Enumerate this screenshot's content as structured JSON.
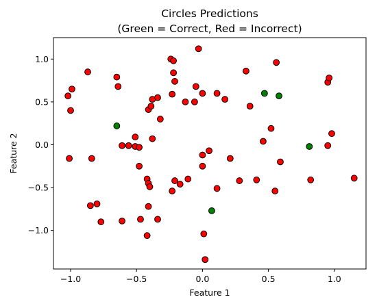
{
  "chart_data": {
    "type": "scatter",
    "title": "Circles Predictions",
    "subtitle": "(Green = Correct, Red = Incorrect)",
    "xlabel": "Feature 1",
    "ylabel": "Feature 2",
    "xlim": [
      -1.13,
      1.24
    ],
    "ylim": [
      -1.45,
      1.25
    ],
    "grid": false,
    "xticks": [
      {
        "v": -1.0,
        "label": "−1.0"
      },
      {
        "v": -0.5,
        "label": "−0.5"
      },
      {
        "v": 0.0,
        "label": "0.0"
      },
      {
        "v": 0.5,
        "label": "0.5"
      },
      {
        "v": 1.0,
        "label": "1.0"
      }
    ],
    "yticks": [
      {
        "v": -1.0,
        "label": "−1.0"
      },
      {
        "v": -0.5,
        "label": "−0.5"
      },
      {
        "v": 0.0,
        "label": "0.0"
      },
      {
        "v": 0.5,
        "label": "0.5"
      },
      {
        "v": 1.0,
        "label": "1.0"
      }
    ],
    "colors": {
      "correct": "#008000",
      "incorrect": "#ff0000",
      "edge": "#000000"
    },
    "series": [
      {
        "key": "correct",
        "color": "#008000",
        "points": [
          [
            -0.65,
            0.22
          ],
          [
            0.47,
            0.6
          ],
          [
            0.58,
            0.57
          ],
          [
            0.81,
            -0.02
          ],
          [
            0.07,
            -0.77
          ]
        ]
      },
      {
        "key": "incorrect",
        "color": "#ff0000",
        "points": [
          [
            -1.02,
            0.57
          ],
          [
            -0.99,
            0.65
          ],
          [
            -1.0,
            0.4
          ],
          [
            -1.01,
            -0.16
          ],
          [
            -0.87,
            0.85
          ],
          [
            -0.84,
            -0.16
          ],
          [
            -0.85,
            -0.71
          ],
          [
            -0.8,
            -0.69
          ],
          [
            -0.77,
            -0.9
          ],
          [
            -0.65,
            0.79
          ],
          [
            -0.64,
            0.68
          ],
          [
            -0.61,
            -0.01
          ],
          [
            -0.56,
            -0.01
          ],
          [
            -0.51,
            0.09
          ],
          [
            -0.51,
            -0.02
          ],
          [
            -0.48,
            -0.03
          ],
          [
            -0.48,
            -0.25
          ],
          [
            -0.61,
            -0.89
          ],
          [
            -0.47,
            -0.87
          ],
          [
            -0.42,
            -0.4
          ],
          [
            -0.41,
            -0.45
          ],
          [
            -0.4,
            -0.49
          ],
          [
            -0.41,
            -0.72
          ],
          [
            -0.42,
            -1.06
          ],
          [
            -0.34,
            -0.87
          ],
          [
            -0.41,
            0.41
          ],
          [
            -0.39,
            0.45
          ],
          [
            -0.38,
            0.53
          ],
          [
            -0.38,
            0.07
          ],
          [
            -0.34,
            0.55
          ],
          [
            -0.32,
            0.3
          ],
          [
            -0.24,
            1.0
          ],
          [
            -0.22,
            0.98
          ],
          [
            -0.22,
            0.84
          ],
          [
            -0.21,
            0.74
          ],
          [
            -0.23,
            0.59
          ],
          [
            -0.13,
            0.5
          ],
          [
            -0.06,
            0.5
          ],
          [
            -0.05,
            0.68
          ],
          [
            -0.03,
            1.12
          ],
          [
            0.0,
            0.6
          ],
          [
            -0.23,
            -0.54
          ],
          [
            -0.21,
            -0.42
          ],
          [
            -0.17,
            -0.46
          ],
          [
            -0.11,
            -0.4
          ],
          [
            0.0,
            -0.12
          ],
          [
            0.05,
            -0.07
          ],
          [
            0.0,
            -0.25
          ],
          [
            0.11,
            0.6
          ],
          [
            0.17,
            0.53
          ],
          [
            0.21,
            -0.16
          ],
          [
            0.11,
            -0.51
          ],
          [
            0.28,
            -0.42
          ],
          [
            0.33,
            0.86
          ],
          [
            0.36,
            0.45
          ],
          [
            0.41,
            -0.41
          ],
          [
            0.46,
            0.04
          ],
          [
            0.52,
            0.19
          ],
          [
            0.56,
            0.96
          ],
          [
            0.55,
            -0.54
          ],
          [
            0.59,
            -0.2
          ],
          [
            0.01,
            -1.04
          ],
          [
            0.02,
            -1.34
          ],
          [
            0.82,
            -0.41
          ],
          [
            0.95,
            0.73
          ],
          [
            0.96,
            0.78
          ],
          [
            0.98,
            0.13
          ],
          [
            0.95,
            -0.01
          ],
          [
            1.15,
            -0.39
          ]
        ]
      }
    ]
  }
}
